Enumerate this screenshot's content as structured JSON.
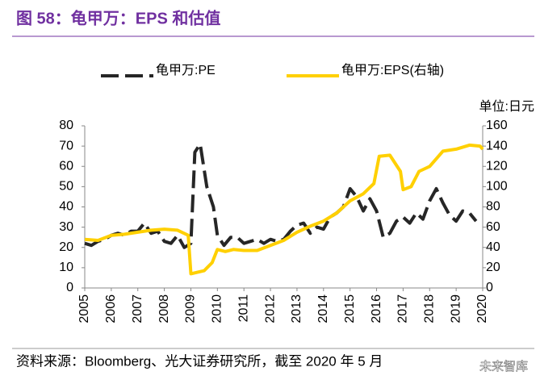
{
  "chart_data": {
    "type": "line",
    "title": "图 58：龟甲万：EPS 和估值",
    "unit_label": "单位:日元",
    "source": "资料来源：Bloomberg、光大证券研究所，截至 2020 年 5 月",
    "watermark": "未来智库",
    "xlim": [
      2005,
      2020
    ],
    "xticks": [
      2005,
      2006,
      2007,
      2008,
      2009,
      2010,
      2011,
      2012,
      2013,
      2014,
      2015,
      2016,
      2017,
      2018,
      2019,
      2020
    ],
    "ylim": [
      0,
      80
    ],
    "yticks": [
      0,
      10,
      20,
      30,
      40,
      50,
      60,
      70,
      80
    ],
    "y2lim": [
      0,
      160
    ],
    "y2ticks": [
      0,
      20,
      40,
      60,
      80,
      100,
      120,
      140,
      160
    ],
    "series": [
      {
        "name": "龟甲万:PE",
        "color": "#262626",
        "dashed": true,
        "x": [
          2005,
          2005.25,
          2005.5,
          2005.75,
          2006,
          2006.25,
          2006.5,
          2006.75,
          2007,
          2007.25,
          2007.5,
          2007.75,
          2008,
          2008.25,
          2008.5,
          2008.75,
          2009,
          2009.15,
          2009.35,
          2009.6,
          2009.85,
          2010,
          2010.25,
          2010.5,
          2010.75,
          2011,
          2011.25,
          2011.5,
          2011.75,
          2012,
          2012.25,
          2012.5,
          2012.75,
          2013,
          2013.25,
          2013.5,
          2013.75,
          2014,
          2014.25,
          2014.5,
          2014.75,
          2015,
          2015.25,
          2015.5,
          2015.75,
          2016,
          2016.25,
          2016.5,
          2016.75,
          2017,
          2017.25,
          2017.5,
          2017.75,
          2018,
          2018.25,
          2018.5,
          2018.75,
          2019,
          2019.25,
          2019.5,
          2019.75
        ],
        "values": [
          22,
          21,
          23,
          24,
          26,
          27,
          26,
          28,
          28,
          32,
          27,
          28,
          23,
          22,
          26,
          20,
          22,
          67,
          71,
          50,
          40,
          26,
          21,
          25,
          25,
          22,
          23,
          24,
          22,
          24,
          23,
          24,
          28,
          31,
          32,
          27,
          30,
          29,
          35,
          37,
          40,
          49,
          45,
          38,
          44,
          38,
          25,
          27,
          33,
          35,
          32,
          37,
          34,
          43,
          49,
          42,
          36,
          33,
          38,
          37,
          33
        ]
      },
      {
        "name": "龟甲万:EPS(右轴)",
        "color": "#ffd000",
        "axis": "y2",
        "x": [
          2005,
          2005.5,
          2006,
          2006.5,
          2007,
          2007.5,
          2008,
          2008.5,
          2008.9,
          2009,
          2009.5,
          2009.8,
          2010,
          2010.3,
          2010.6,
          2011,
          2011.5,
          2012,
          2012.5,
          2013,
          2013.5,
          2014,
          2014.5,
          2015,
          2015.5,
          2015.9,
          2016.1,
          2016.5,
          2016.9,
          2017,
          2017.3,
          2017.6,
          2018,
          2018.5,
          2019,
          2019.5,
          2019.9,
          2020
        ],
        "values": [
          48,
          47,
          52,
          53,
          55,
          57,
          58,
          57,
          52,
          14,
          17,
          25,
          38,
          36,
          38,
          37,
          37,
          42,
          47,
          55,
          61,
          66,
          74,
          86,
          93,
          103,
          130,
          131,
          115,
          97,
          100,
          115,
          120,
          135,
          137,
          141,
          140,
          137
        ]
      }
    ]
  }
}
